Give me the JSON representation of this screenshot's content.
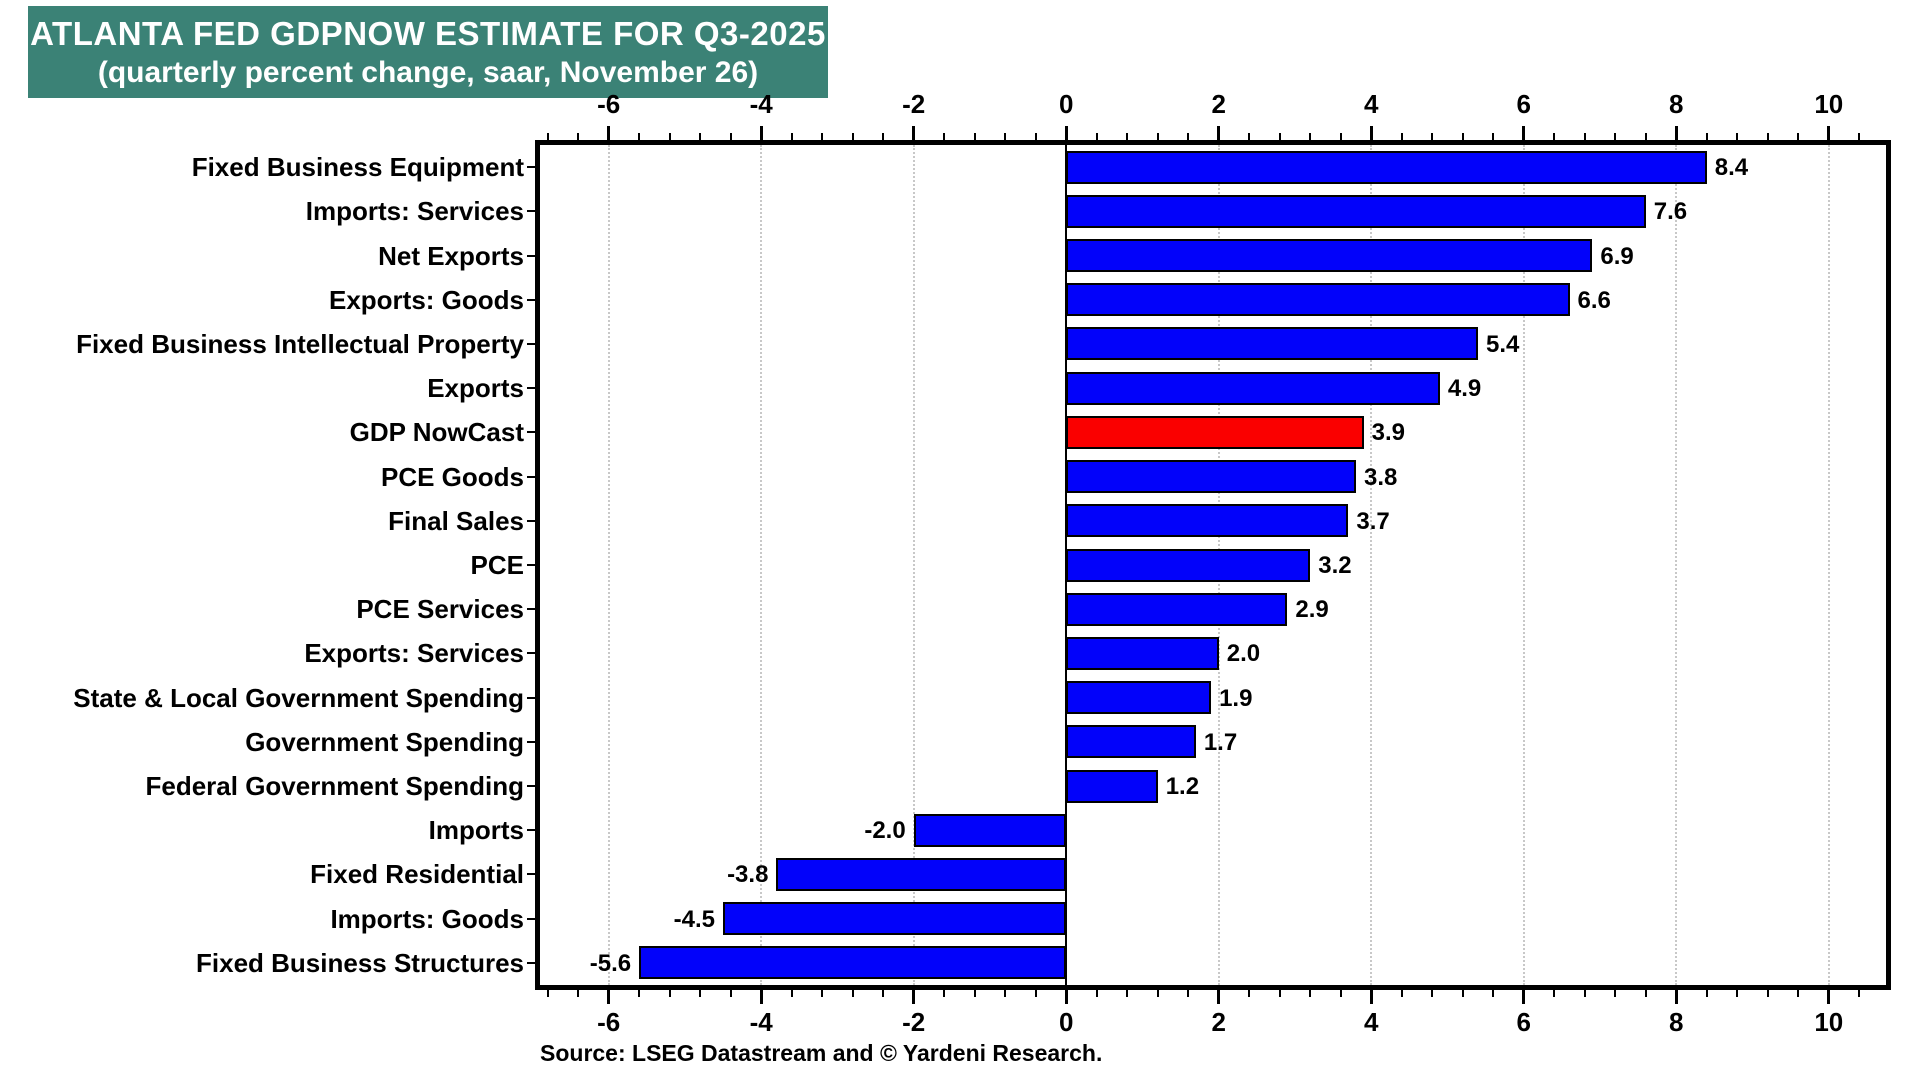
{
  "title": {
    "line1": "ATLANTA FED GDPNOW ESTIMATE FOR Q3-2025",
    "line2": "(quarterly percent change, saar, November 26)"
  },
  "source": "Source: LSEG Datastream and © Yardeni Research.",
  "colors": {
    "title_bg": "#3B8276",
    "bar_default": "#0202FA",
    "bar_highlight": "#FA0000",
    "bar_border": "#000000",
    "grid": "#C8C8C8",
    "axis": "#000000",
    "text": "#000000"
  },
  "chart_data": {
    "type": "bar",
    "orientation": "horizontal",
    "title": "ATLANTA FED GDPNOW ESTIMATE FOR Q3-2025",
    "subtitle": "(quarterly percent change, saar, November 26)",
    "categories": [
      "Fixed Business Equipment",
      "Imports: Services",
      "Net Exports",
      "Exports: Goods",
      "Fixed Business Intellectual Property",
      "Exports",
      "GDP NowCast",
      "PCE Goods",
      "Final Sales",
      "PCE",
      "PCE Services",
      "Exports: Services",
      "State & Local Government Spending",
      "Government Spending",
      "Federal Government Spending",
      "Imports",
      "Fixed Residential",
      "Imports: Goods",
      "Fixed Business Structures"
    ],
    "values": [
      8.4,
      7.6,
      6.9,
      6.6,
      5.4,
      4.9,
      3.9,
      3.8,
      3.7,
      3.2,
      2.9,
      2.0,
      1.9,
      1.7,
      1.2,
      -2.0,
      -3.8,
      -4.5,
      -5.6
    ],
    "highlight_index": 6,
    "highlight_category": "GDP NowCast",
    "value_label_position": "outside-end",
    "xlim": [
      -6.9,
      10.75
    ],
    "x_major_ticks": [
      -6,
      -4,
      -2,
      0,
      2,
      4,
      6,
      8,
      10
    ],
    "x_minor_step": 0.4,
    "grid": "vertical dotted at major ticks, solid black zero line",
    "axis_label_sides": "top and bottom",
    "xlabel": "",
    "ylabel": ""
  }
}
